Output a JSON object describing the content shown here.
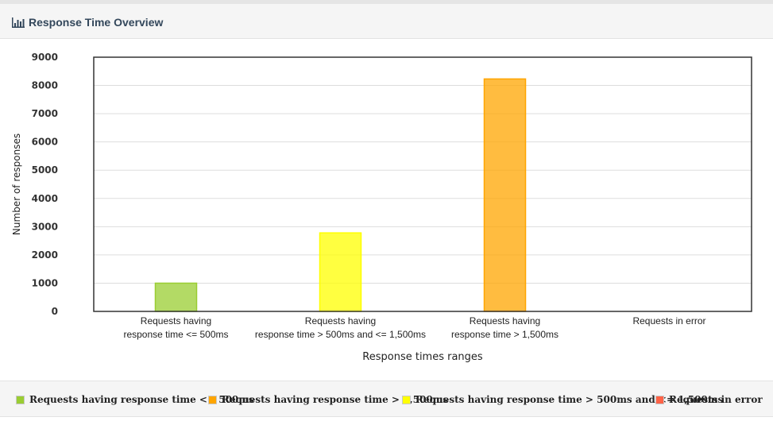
{
  "header": {
    "title": "Response Time Overview",
    "icon": "bar-chart-icon"
  },
  "chart_data": {
    "type": "bar",
    "title": "",
    "xlabel": "Response times ranges",
    "ylabel": "Number of responses",
    "ylim": [
      0,
      9000
    ],
    "yticks": [
      "0",
      "1000",
      "2000",
      "3000",
      "4000",
      "5000",
      "6000",
      "7000",
      "8000",
      "9000"
    ],
    "grid": true,
    "categories": [
      {
        "line1": "Requests having",
        "line2": "response time <= 500ms"
      },
      {
        "line1": "Requests having",
        "line2": "response time > 500ms and <= 1,500ms"
      },
      {
        "line1": "Requests having",
        "line2": "response time > 1,500ms"
      },
      {
        "line1": "Requests in error",
        "line2": ""
      }
    ],
    "values": [
      1000,
      2780,
      8230,
      0
    ],
    "colors": [
      "#9ACD32",
      "#FFFF00",
      "#FFA500",
      "#FF6347"
    ]
  },
  "legend": {
    "placement": "bottom",
    "items": [
      {
        "label": "Requests having response time <= 500ms",
        "color": "#9ACD32"
      },
      {
        "label": "Requests having response time > 1,500ms",
        "color": "#FFA500"
      },
      {
        "label": "Requests having response time > 500ms and <= 1,500ms",
        "color": "#FFFF00"
      },
      {
        "label": "Requests in error",
        "color": "#FF6347"
      }
    ]
  }
}
